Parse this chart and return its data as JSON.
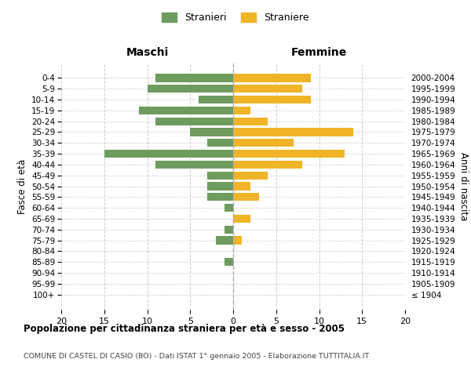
{
  "age_groups": [
    "100+",
    "95-99",
    "90-94",
    "85-89",
    "80-84",
    "75-79",
    "70-74",
    "65-69",
    "60-64",
    "55-59",
    "50-54",
    "45-49",
    "40-44",
    "35-39",
    "30-34",
    "25-29",
    "20-24",
    "15-19",
    "10-14",
    "5-9",
    "0-4"
  ],
  "birth_years": [
    "≤ 1904",
    "1905-1909",
    "1910-1914",
    "1915-1919",
    "1920-1924",
    "1925-1929",
    "1930-1934",
    "1935-1939",
    "1940-1944",
    "1945-1949",
    "1950-1954",
    "1955-1959",
    "1960-1964",
    "1965-1969",
    "1970-1974",
    "1975-1979",
    "1980-1984",
    "1985-1989",
    "1990-1994",
    "1995-1999",
    "2000-2004"
  ],
  "maschi": [
    0,
    0,
    0,
    1,
    0,
    2,
    1,
    0,
    1,
    3,
    3,
    3,
    9,
    15,
    3,
    5,
    9,
    11,
    4,
    10,
    9
  ],
  "femmine": [
    0,
    0,
    0,
    0,
    0,
    1,
    0,
    2,
    0,
    3,
    2,
    4,
    8,
    13,
    7,
    14,
    4,
    2,
    9,
    8,
    9
  ],
  "color_maschi": "#6e9b5e",
  "color_femmine": "#f0b429",
  "title": "Popolazione per cittadinanza straniera per età e sesso - 2005",
  "subtitle": "COMUNE DI CASTEL DI CASIO (BO) - Dati ISTAT 1° gennaio 2005 - Elaborazione TUTTITALIA.IT",
  "legend_maschi": "Stranieri",
  "legend_femmine": "Straniere",
  "xlabel_left": "Maschi",
  "xlabel_right": "Femmine",
  "ylabel_left": "Fasce di età",
  "ylabel_right": "Anni di nascita",
  "xlim": 20,
  "bg_color": "#ffffff",
  "grid_color": "#cccccc"
}
